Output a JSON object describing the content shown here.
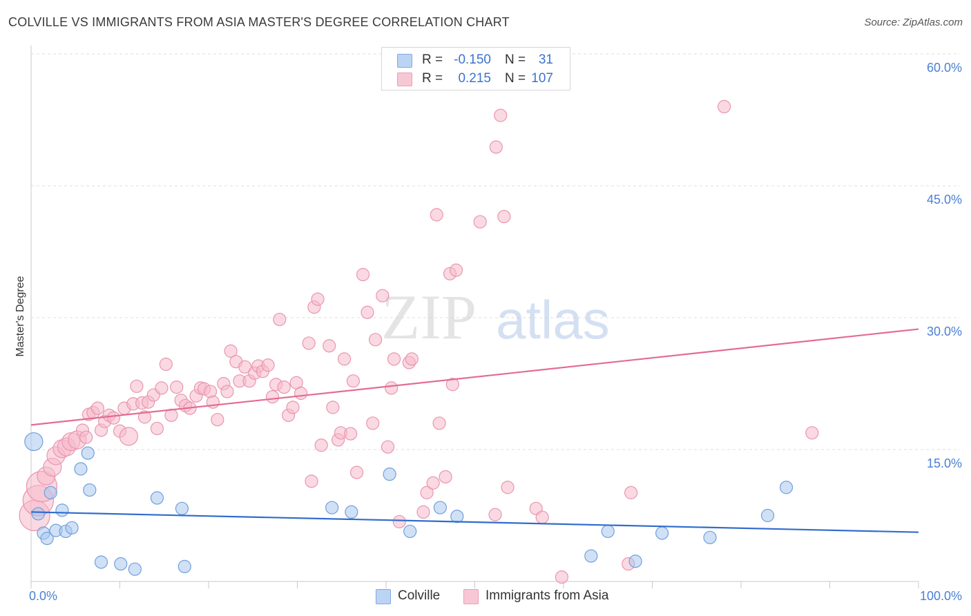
{
  "header": {
    "title": "COLVILLE VS IMMIGRANTS FROM ASIA MASTER'S DEGREE CORRELATION CHART",
    "source": "Source: ZipAtlas.com"
  },
  "watermark": {
    "zip": "ZIP",
    "atlas": "atlas"
  },
  "legend": {
    "rows": [
      {
        "r_label": "R =",
        "r_value": "-0.150",
        "n_label": "N =",
        "n_value": "31"
      },
      {
        "r_label": "R =",
        "r_value": "0.215",
        "n_label": "N =",
        "n_value": "107"
      }
    ]
  },
  "bottom_legend": {
    "series1": "Colville",
    "series2": "Immigrants from Asia"
  },
  "colors": {
    "blue_fill": "#a9c8ee",
    "blue_stroke": "#6f9fdc",
    "blue_line": "#2f6ccc",
    "pink_fill": "#f5b9cb",
    "pink_stroke": "#e995b0",
    "pink_line": "#e46b93",
    "grid": "#dcdcdc",
    "tick_text": "#4a7fd4"
  },
  "chart_data": {
    "type": "scatter",
    "title": "COLVILLE VS IMMIGRANTS FROM ASIA MASTER'S DEGREE CORRELATION CHART",
    "xlabel": "",
    "ylabel": "Master's Degree",
    "xlim": [
      0,
      100
    ],
    "ylim": [
      0,
      60
    ],
    "x_tick_labels": [
      "0.0%",
      "100.0%"
    ],
    "y_ticks": [
      15,
      30,
      45,
      60
    ],
    "y_tick_labels": [
      "15.0%",
      "30.0%",
      "45.0%",
      "60.0%"
    ],
    "grid": true,
    "series": [
      {
        "name": "Colville",
        "color": "blue",
        "r": -0.15,
        "n": 31,
        "trend": {
          "x": [
            0,
            100
          ],
          "y": [
            7.9,
            5.6
          ]
        },
        "points": [
          {
            "x": 0.3,
            "y": 15.9,
            "s": 2
          },
          {
            "x": 0.8,
            "y": 7.7,
            "s": 1
          },
          {
            "x": 1.4,
            "y": 5.5,
            "s": 1
          },
          {
            "x": 1.8,
            "y": 4.9,
            "s": 1
          },
          {
            "x": 2.2,
            "y": 10.1,
            "s": 1
          },
          {
            "x": 2.8,
            "y": 5.8,
            "s": 1
          },
          {
            "x": 3.5,
            "y": 8.1,
            "s": 1
          },
          {
            "x": 3.9,
            "y": 5.7,
            "s": 1
          },
          {
            "x": 4.6,
            "y": 6.1,
            "s": 1
          },
          {
            "x": 5.6,
            "y": 12.8,
            "s": 1
          },
          {
            "x": 6.4,
            "y": 14.6,
            "s": 1
          },
          {
            "x": 6.6,
            "y": 10.4,
            "s": 1
          },
          {
            "x": 7.9,
            "y": 2.2,
            "s": 1
          },
          {
            "x": 10.1,
            "y": 2.0,
            "s": 1
          },
          {
            "x": 11.7,
            "y": 1.4,
            "s": 1
          },
          {
            "x": 14.2,
            "y": 9.5,
            "s": 1
          },
          {
            "x": 17.0,
            "y": 8.3,
            "s": 1
          },
          {
            "x": 17.3,
            "y": 1.7,
            "s": 1
          },
          {
            "x": 33.9,
            "y": 8.4,
            "s": 1
          },
          {
            "x": 36.1,
            "y": 7.9,
            "s": 1
          },
          {
            "x": 40.4,
            "y": 12.2,
            "s": 1
          },
          {
            "x": 42.7,
            "y": 5.7,
            "s": 1
          },
          {
            "x": 46.1,
            "y": 8.4,
            "s": 1
          },
          {
            "x": 48.0,
            "y": 7.4,
            "s": 1
          },
          {
            "x": 63.1,
            "y": 2.9,
            "s": 1
          },
          {
            "x": 65.0,
            "y": 5.7,
            "s": 1
          },
          {
            "x": 68.1,
            "y": 2.3,
            "s": 1
          },
          {
            "x": 71.1,
            "y": 5.5,
            "s": 1
          },
          {
            "x": 76.5,
            "y": 5.0,
            "s": 1
          },
          {
            "x": 83.0,
            "y": 7.5,
            "s": 1
          },
          {
            "x": 85.1,
            "y": 10.7,
            "s": 1
          }
        ]
      },
      {
        "name": "Immigrants from Asia",
        "color": "pink",
        "r": 0.215,
        "n": 107,
        "trend": {
          "x": [
            0,
            100
          ],
          "y": [
            17.8,
            28.7
          ]
        },
        "points": [
          {
            "x": 0.4,
            "y": 7.5,
            "s": 3
          },
          {
            "x": 0.8,
            "y": 9.2,
            "s": 3
          },
          {
            "x": 1.2,
            "y": 10.8,
            "s": 3
          },
          {
            "x": 1.7,
            "y": 12.0,
            "s": 2
          },
          {
            "x": 2.4,
            "y": 13.0,
            "s": 2
          },
          {
            "x": 2.8,
            "y": 14.3,
            "s": 2
          },
          {
            "x": 3.5,
            "y": 15.1,
            "s": 2
          },
          {
            "x": 4.0,
            "y": 15.3,
            "s": 2
          },
          {
            "x": 4.5,
            "y": 15.9,
            "s": 2
          },
          {
            "x": 5.2,
            "y": 16.1,
            "s": 2
          },
          {
            "x": 5.8,
            "y": 17.2,
            "s": 1
          },
          {
            "x": 6.2,
            "y": 16.4,
            "s": 1
          },
          {
            "x": 6.5,
            "y": 19.0,
            "s": 1
          },
          {
            "x": 7.0,
            "y": 19.2,
            "s": 1
          },
          {
            "x": 7.5,
            "y": 19.7,
            "s": 1
          },
          {
            "x": 7.9,
            "y": 17.2,
            "s": 1
          },
          {
            "x": 8.3,
            "y": 18.2,
            "s": 1
          },
          {
            "x": 8.8,
            "y": 18.9,
            "s": 1
          },
          {
            "x": 9.3,
            "y": 18.6,
            "s": 1
          },
          {
            "x": 10.0,
            "y": 17.1,
            "s": 1
          },
          {
            "x": 10.5,
            "y": 19.7,
            "s": 1
          },
          {
            "x": 11.0,
            "y": 16.5,
            "s": 2
          },
          {
            "x": 11.5,
            "y": 20.2,
            "s": 1
          },
          {
            "x": 11.9,
            "y": 22.2,
            "s": 1
          },
          {
            "x": 12.5,
            "y": 20.3,
            "s": 1
          },
          {
            "x": 12.8,
            "y": 18.7,
            "s": 1
          },
          {
            "x": 13.2,
            "y": 20.4,
            "s": 1
          },
          {
            "x": 13.8,
            "y": 21.2,
            "s": 1
          },
          {
            "x": 14.2,
            "y": 17.4,
            "s": 1
          },
          {
            "x": 14.7,
            "y": 22.0,
            "s": 1
          },
          {
            "x": 15.2,
            "y": 24.7,
            "s": 1
          },
          {
            "x": 15.8,
            "y": 18.9,
            "s": 1
          },
          {
            "x": 16.4,
            "y": 22.1,
            "s": 1
          },
          {
            "x": 16.9,
            "y": 20.6,
            "s": 1
          },
          {
            "x": 17.4,
            "y": 20.0,
            "s": 1
          },
          {
            "x": 17.9,
            "y": 19.7,
            "s": 1
          },
          {
            "x": 18.6,
            "y": 21.1,
            "s": 1
          },
          {
            "x": 19.1,
            "y": 22.0,
            "s": 1
          },
          {
            "x": 19.5,
            "y": 21.9,
            "s": 1
          },
          {
            "x": 20.2,
            "y": 21.6,
            "s": 1
          },
          {
            "x": 20.5,
            "y": 20.4,
            "s": 1
          },
          {
            "x": 21.0,
            "y": 18.4,
            "s": 1
          },
          {
            "x": 21.7,
            "y": 22.5,
            "s": 1
          },
          {
            "x": 22.1,
            "y": 21.6,
            "s": 1
          },
          {
            "x": 22.5,
            "y": 26.2,
            "s": 1
          },
          {
            "x": 23.1,
            "y": 25.0,
            "s": 1
          },
          {
            "x": 23.5,
            "y": 22.8,
            "s": 1
          },
          {
            "x": 24.1,
            "y": 24.4,
            "s": 1
          },
          {
            "x": 24.6,
            "y": 22.8,
            "s": 1
          },
          {
            "x": 25.2,
            "y": 23.7,
            "s": 1
          },
          {
            "x": 25.6,
            "y": 24.5,
            "s": 1
          },
          {
            "x": 26.1,
            "y": 23.9,
            "s": 1
          },
          {
            "x": 26.7,
            "y": 24.6,
            "s": 1
          },
          {
            "x": 27.2,
            "y": 21.0,
            "s": 1
          },
          {
            "x": 27.6,
            "y": 22.4,
            "s": 1
          },
          {
            "x": 28.0,
            "y": 29.8,
            "s": 1
          },
          {
            "x": 28.5,
            "y": 22.1,
            "s": 1
          },
          {
            "x": 29.0,
            "y": 18.9,
            "s": 1
          },
          {
            "x": 29.5,
            "y": 19.8,
            "s": 1
          },
          {
            "x": 29.9,
            "y": 22.6,
            "s": 1
          },
          {
            "x": 30.4,
            "y": 21.4,
            "s": 1
          },
          {
            "x": 31.3,
            "y": 27.1,
            "s": 1
          },
          {
            "x": 31.6,
            "y": 11.4,
            "s": 1
          },
          {
            "x": 31.9,
            "y": 31.2,
            "s": 1
          },
          {
            "x": 32.3,
            "y": 32.1,
            "s": 1
          },
          {
            "x": 32.7,
            "y": 15.5,
            "s": 1
          },
          {
            "x": 33.6,
            "y": 26.8,
            "s": 1
          },
          {
            "x": 34.0,
            "y": 19.8,
            "s": 1
          },
          {
            "x": 34.6,
            "y": 16.1,
            "s": 1
          },
          {
            "x": 34.9,
            "y": 16.9,
            "s": 1
          },
          {
            "x": 35.3,
            "y": 25.3,
            "s": 1
          },
          {
            "x": 36.0,
            "y": 16.8,
            "s": 1
          },
          {
            "x": 36.3,
            "y": 22.8,
            "s": 1
          },
          {
            "x": 36.7,
            "y": 12.4,
            "s": 1
          },
          {
            "x": 37.4,
            "y": 34.9,
            "s": 1
          },
          {
            "x": 37.9,
            "y": 30.6,
            "s": 1
          },
          {
            "x": 38.5,
            "y": 18.0,
            "s": 1
          },
          {
            "x": 38.8,
            "y": 27.5,
            "s": 1
          },
          {
            "x": 39.6,
            "y": 32.5,
            "s": 1
          },
          {
            "x": 40.2,
            "y": 15.3,
            "s": 1
          },
          {
            "x": 40.6,
            "y": 22.0,
            "s": 1
          },
          {
            "x": 40.9,
            "y": 25.3,
            "s": 1
          },
          {
            "x": 41.5,
            "y": 6.8,
            "s": 1
          },
          {
            "x": 42.6,
            "y": 24.9,
            "s": 1
          },
          {
            "x": 42.9,
            "y": 25.3,
            "s": 1
          },
          {
            "x": 44.2,
            "y": 7.9,
            "s": 1
          },
          {
            "x": 44.6,
            "y": 10.1,
            "s": 1
          },
          {
            "x": 45.3,
            "y": 11.2,
            "s": 1
          },
          {
            "x": 45.7,
            "y": 41.7,
            "s": 1
          },
          {
            "x": 46.0,
            "y": 18.0,
            "s": 1
          },
          {
            "x": 46.7,
            "y": 11.9,
            "s": 1
          },
          {
            "x": 47.2,
            "y": 35.0,
            "s": 1
          },
          {
            "x": 47.5,
            "y": 22.4,
            "s": 1
          },
          {
            "x": 47.9,
            "y": 35.4,
            "s": 1
          },
          {
            "x": 50.6,
            "y": 40.9,
            "s": 1
          },
          {
            "x": 52.3,
            "y": 7.6,
            "s": 1
          },
          {
            "x": 52.4,
            "y": 49.4,
            "s": 1
          },
          {
            "x": 52.9,
            "y": 53.0,
            "s": 1
          },
          {
            "x": 53.3,
            "y": 41.5,
            "s": 1
          },
          {
            "x": 53.7,
            "y": 10.7,
            "s": 1
          },
          {
            "x": 56.9,
            "y": 8.3,
            "s": 1
          },
          {
            "x": 57.6,
            "y": 7.3,
            "s": 1
          },
          {
            "x": 59.8,
            "y": 0.5,
            "s": 1
          },
          {
            "x": 67.3,
            "y": 2.0,
            "s": 1
          },
          {
            "x": 67.6,
            "y": 10.1,
            "s": 1
          },
          {
            "x": 78.1,
            "y": 54.0,
            "s": 1
          },
          {
            "x": 88.0,
            "y": 16.9,
            "s": 1
          }
        ]
      }
    ]
  }
}
